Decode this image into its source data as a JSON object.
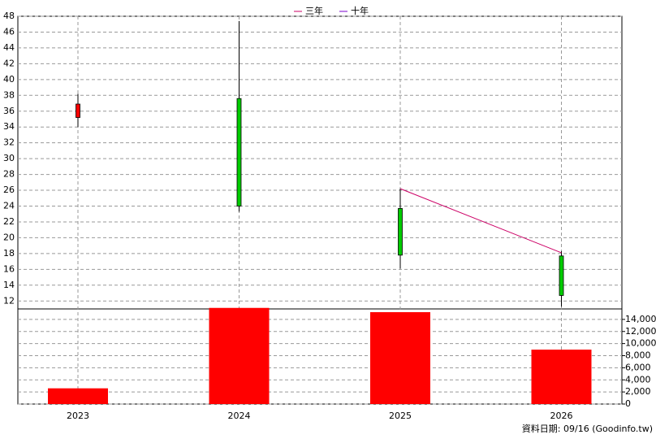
{
  "chart_data": {
    "type": "candlestick",
    "categories": [
      "2023",
      "2024",
      "2025",
      "2026"
    ],
    "open": [
      35.2,
      37.6,
      23.7,
      17.7
    ],
    "high": [
      38.2,
      47.4,
      26.2,
      18.3
    ],
    "low": [
      34.0,
      23.3,
      16.1,
      11.3
    ],
    "close": [
      36.9,
      24.0,
      17.8,
      12.7
    ],
    "up_color": "#ff0000",
    "down_color": "#00cc00",
    "series": [
      {
        "name": "三年",
        "color": "#cc0066",
        "values": [
          null,
          null,
          26.2,
          18.1
        ]
      },
      {
        "name": "十年",
        "color": "#7a00cc",
        "values": [
          null,
          null,
          null,
          null
        ]
      }
    ],
    "ylim": [
      11,
      48
    ],
    "yticks": [
      12,
      14,
      16,
      18,
      20,
      22,
      24,
      26,
      28,
      30,
      32,
      34,
      36,
      38,
      40,
      42,
      44,
      46,
      48
    ],
    "volume": {
      "color": "#ff0000",
      "values": [
        2600,
        15900,
        15200,
        9000
      ]
    },
    "y2lim": [
      0,
      16000
    ],
    "y2ticks": [
      0,
      {
        "value": 2000,
        "label": "2,000"
      },
      {
        "value": 4000,
        "label": "4,000"
      },
      {
        "value": 6000,
        "label": "6,000"
      },
      {
        "value": 8000,
        "label": "8,000"
      },
      {
        "value": 10000,
        "label": "10,000"
      },
      {
        "value": 12000,
        "label": "12,000"
      },
      {
        "value": 14000,
        "label": "14,000"
      }
    ],
    "grid": true,
    "footer": "資料日期: 09/16  (Goodinfo.tw)"
  }
}
